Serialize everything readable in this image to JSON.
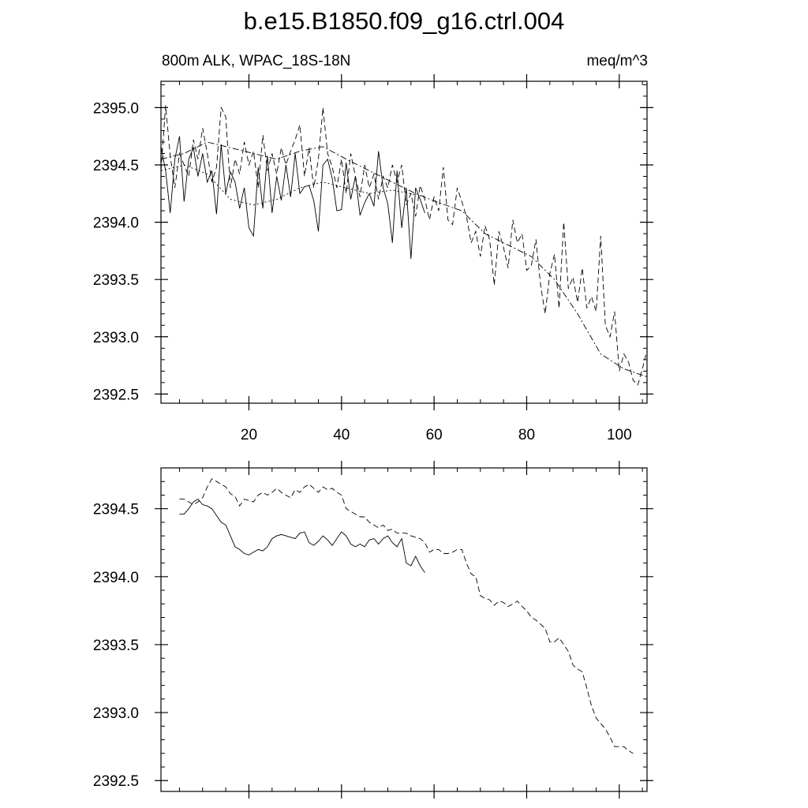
{
  "title": "b.e15.B1850.f09_g16.ctrl.004",
  "chart_data": [
    {
      "type": "line",
      "subtitle_left": "800m ALK, WPAC_18S-18N",
      "subtitle_right": "meq/m^3",
      "xlim": [
        1,
        106
      ],
      "ylim": [
        2392.42,
        2395.23
      ],
      "x_ticks": [
        20,
        40,
        60,
        80,
        100
      ],
      "y_ticks": [
        2392.5,
        2393.0,
        2393.5,
        2394.0,
        2394.5,
        2395.0
      ],
      "x_tick_labels": [
        "20",
        "40",
        "60",
        "80",
        "100"
      ],
      "y_tick_labels": [
        "2392.5",
        "2393.0",
        "2393.5",
        "2394.0",
        "2394.5",
        "2395.0"
      ],
      "series": [
        {
          "style": "solid",
          "x": [
            1,
            2,
            3,
            4,
            5,
            6,
            7,
            8,
            9,
            10,
            11,
            12,
            13,
            14,
            15,
            16,
            17,
            18,
            19,
            20,
            21,
            22,
            23,
            24,
            25,
            26,
            27,
            28,
            29,
            30,
            31,
            32,
            33,
            34,
            35,
            36,
            37,
            38,
            39,
            40,
            41,
            42,
            43,
            44,
            45,
            46,
            47,
            48,
            49,
            50,
            51,
            52,
            53,
            54,
            55,
            56,
            57,
            58
          ],
          "y": [
            2394.66,
            2394.45,
            2394.08,
            2394.55,
            2394.75,
            2394.18,
            2394.55,
            2394.65,
            2394.4,
            2394.6,
            2394.35,
            2394.45,
            2394.07,
            2394.68,
            2394.25,
            2394.44,
            2394.35,
            2394.12,
            2394.3,
            2393.95,
            2393.88,
            2394.48,
            2394.12,
            2394.58,
            2394.08,
            2394.4,
            2394.19,
            2394.5,
            2394.22,
            2394.6,
            2394.25,
            2394.31,
            2394.32,
            2394.19,
            2393.92,
            2394.5,
            2394.55,
            2394.38,
            2394.1,
            2394.11,
            2394.52,
            2394.2,
            2394.4,
            2394.06,
            2394.17,
            2394.25,
            2394.14,
            2394.62,
            2394.3,
            2394.16,
            2393.82,
            2394.45,
            2393.95,
            2394.3,
            2393.68,
            2394.3,
            2394.2,
            2394.08
          ]
        },
        {
          "style": "dashed",
          "x": [
            1,
            2,
            3,
            4,
            5,
            6,
            7,
            8,
            9,
            10,
            11,
            12,
            13,
            14,
            15,
            16,
            17,
            18,
            19,
            20,
            21,
            22,
            23,
            24,
            25,
            26,
            27,
            28,
            29,
            30,
            31,
            32,
            33,
            34,
            35,
            36,
            37,
            38,
            39,
            40,
            41,
            42,
            43,
            44,
            45,
            46,
            47,
            48,
            49,
            50,
            51,
            52,
            53,
            54,
            55,
            56,
            57,
            58,
            59,
            60,
            61,
            62,
            63,
            64,
            65,
            66,
            67,
            68,
            69,
            70,
            71,
            72,
            73,
            74,
            75,
            76,
            77,
            78,
            79,
            80,
            81,
            82,
            83,
            84,
            85,
            86,
            87,
            88,
            89,
            90,
            91,
            92,
            93,
            94,
            95,
            96,
            97,
            98,
            99,
            100,
            101,
            102,
            103,
            104,
            105,
            106
          ],
          "y": [
            2394.45,
            2395.02,
            2394.58,
            2394.3,
            2394.6,
            2394.5,
            2394.4,
            2394.72,
            2394.55,
            2394.82,
            2394.6,
            2394.35,
            2394.48,
            2395.0,
            2394.92,
            2394.3,
            2394.55,
            2394.42,
            2394.7,
            2394.5,
            2394.62,
            2394.3,
            2394.76,
            2394.45,
            2394.6,
            2394.42,
            2394.65,
            2394.5,
            2394.62,
            2394.72,
            2394.85,
            2394.4,
            2394.65,
            2394.3,
            2394.55,
            2395.0,
            2394.6,
            2394.48,
            2394.3,
            2394.55,
            2394.25,
            2394.6,
            2394.4,
            2394.22,
            2394.5,
            2394.3,
            2394.42,
            2394.2,
            2394.4,
            2394.3,
            2394.5,
            2394.35,
            2394.5,
            2394.15,
            2394.25,
            2394.05,
            2394.32,
            2394.2,
            2394.02,
            2394.22,
            2394.1,
            2394.48,
            2394.02,
            2393.98,
            2394.3,
            2394.18,
            2394.05,
            2393.82,
            2393.92,
            2393.7,
            2393.97,
            2393.85,
            2393.45,
            2393.92,
            2393.78,
            2393.6,
            2394.02,
            2393.82,
            2393.9,
            2393.58,
            2393.62,
            2393.85,
            2393.45,
            2393.2,
            2393.55,
            2393.72,
            2393.25,
            2394.0,
            2393.42,
            2393.52,
            2393.3,
            2393.6,
            2393.25,
            2393.35,
            2393.22,
            2393.88,
            2393.1,
            2393.0,
            2393.22,
            2392.7,
            2392.85,
            2392.78,
            2392.62,
            2392.58,
            2392.72,
            2392.88
          ]
        },
        {
          "style": "dash-dot",
          "x": [
            1,
            6,
            11,
            16,
            21,
            26,
            31,
            36,
            41,
            46,
            51,
            56,
            61,
            66,
            71,
            76,
            81,
            86,
            91,
            96,
            101,
            106
          ],
          "y": [
            2394.55,
            2394.6,
            2394.7,
            2394.65,
            2394.6,
            2394.55,
            2394.62,
            2394.66,
            2394.55,
            2394.45,
            2394.35,
            2394.25,
            2394.17,
            2394.1,
            2393.9,
            2393.8,
            2393.7,
            2393.5,
            2393.2,
            2392.85,
            2392.72,
            2392.65
          ]
        },
        {
          "style": "dotted",
          "x": [
            1,
            6,
            11,
            16,
            21,
            26,
            31,
            36,
            41,
            46,
            51,
            56
          ],
          "y": [
            2394.45,
            2394.5,
            2394.42,
            2394.2,
            2394.15,
            2394.2,
            2394.3,
            2394.35,
            2394.3,
            2394.25,
            2394.28,
            2394.24
          ]
        }
      ]
    },
    {
      "type": "line",
      "xlim": [
        1,
        106
      ],
      "ylim": [
        2392.42,
        2394.8
      ],
      "x_ticks": [
        20,
        40,
        60,
        80,
        100
      ],
      "y_ticks": [
        2392.5,
        2393.0,
        2393.5,
        2394.0,
        2394.5
      ],
      "y_tick_labels": [
        "2392.5",
        "2393.0",
        "2393.5",
        "2394.0",
        "2394.5"
      ],
      "series": [
        {
          "style": "solid",
          "x": [
            5,
            6,
            7,
            8,
            9,
            10,
            11,
            12,
            13,
            14,
            15,
            16,
            17,
            18,
            19,
            20,
            21,
            22,
            23,
            24,
            25,
            26,
            27,
            28,
            29,
            30,
            31,
            32,
            33,
            34,
            35,
            36,
            37,
            38,
            39,
            40,
            41,
            42,
            43,
            44,
            45,
            46,
            47,
            48,
            49,
            50,
            51,
            52,
            53,
            54,
            55,
            56,
            57,
            58
          ],
          "y": [
            2394.46,
            2394.46,
            2394.5,
            2394.55,
            2394.57,
            2394.53,
            2394.52,
            2394.5,
            2394.45,
            2394.4,
            2394.38,
            2394.3,
            2394.22,
            2394.2,
            2394.17,
            2394.16,
            2394.18,
            2394.2,
            2394.19,
            2394.22,
            2394.28,
            2394.3,
            2394.31,
            2394.3,
            2394.29,
            2394.28,
            2394.32,
            2394.33,
            2394.25,
            2394.23,
            2394.26,
            2394.3,
            2394.27,
            2394.23,
            2394.28,
            2394.33,
            2394.3,
            2394.24,
            2394.22,
            2394.24,
            2394.22,
            2394.27,
            2394.28,
            2394.24,
            2394.28,
            2394.3,
            2394.25,
            2394.22,
            2394.28,
            2394.1,
            2394.08,
            2394.15,
            2394.08,
            2394.03
          ]
        },
        {
          "style": "dashed",
          "x": [
            5,
            6,
            7,
            8,
            9,
            10,
            11,
            12,
            13,
            14,
            15,
            16,
            17,
            18,
            19,
            20,
            21,
            22,
            23,
            24,
            25,
            26,
            27,
            28,
            29,
            30,
            31,
            32,
            33,
            34,
            35,
            36,
            37,
            38,
            39,
            40,
            41,
            42,
            43,
            44,
            45,
            46,
            47,
            48,
            49,
            50,
            51,
            52,
            53,
            54,
            55,
            56,
            57,
            58,
            59,
            60,
            61,
            62,
            63,
            64,
            65,
            66,
            67,
            68,
            69,
            70,
            71,
            72,
            73,
            74,
            75,
            76,
            77,
            78,
            79,
            80,
            81,
            82,
            83,
            84,
            85,
            86,
            87,
            88,
            89,
            90,
            91,
            92,
            93,
            94,
            95,
            96,
            97,
            98,
            99,
            100,
            101,
            102,
            103
          ],
          "y": [
            2394.57,
            2394.57,
            2394.55,
            2394.53,
            2394.55,
            2394.58,
            2394.66,
            2394.72,
            2394.7,
            2394.68,
            2394.66,
            2394.61,
            2394.59,
            2394.52,
            2394.57,
            2394.56,
            2394.55,
            2394.6,
            2394.62,
            2394.6,
            2394.62,
            2394.65,
            2394.62,
            2394.6,
            2394.58,
            2394.64,
            2394.62,
            2394.66,
            2394.68,
            2394.65,
            2394.62,
            2394.66,
            2394.64,
            2394.65,
            2394.62,
            2394.6,
            2394.5,
            2394.48,
            2394.46,
            2394.44,
            2394.44,
            2394.4,
            2394.38,
            2394.36,
            2394.38,
            2394.34,
            2394.35,
            2394.32,
            2394.32,
            2394.32,
            2394.3,
            2394.29,
            2394.28,
            2394.25,
            2394.18,
            2394.2,
            2394.2,
            2394.17,
            2394.17,
            2394.18,
            2394.2,
            2394.2,
            2394.1,
            2394.02,
            2394.0,
            2393.86,
            2393.84,
            2393.83,
            2393.79,
            2393.82,
            2393.81,
            2393.78,
            2393.8,
            2393.82,
            2393.78,
            2393.75,
            2393.7,
            2393.68,
            2393.65,
            2393.62,
            2393.52,
            2393.52,
            2393.55,
            2393.5,
            2393.45,
            2393.35,
            2393.32,
            2393.3,
            2393.18,
            2393.05,
            2392.96,
            2392.92,
            2392.88,
            2392.82,
            2392.75,
            2392.75,
            2392.75,
            2392.72,
            2392.7
          ]
        }
      ]
    }
  ]
}
